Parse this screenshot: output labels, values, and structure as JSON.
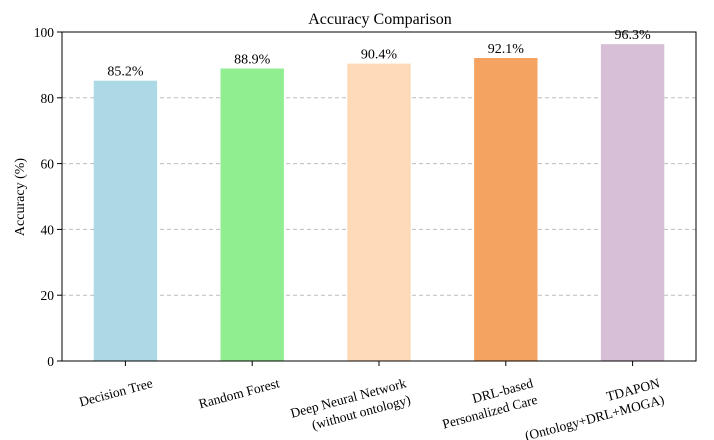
{
  "chart_data": {
    "type": "bar",
    "title": "Accuracy Comparison",
    "xlabel": "",
    "ylabel": "Accuracy (%)",
    "ylim": [
      0,
      100
    ],
    "yticks": [
      0,
      20,
      40,
      60,
      80,
      100
    ],
    "grid": "y-dashed",
    "categories": [
      "Decision Tree",
      "Random Forest",
      "Deep Neural Network\n(without ontology)",
      "DRL-based\nPersonalized Care",
      "TDAPON\n(Ontology+DRL+MOGA)"
    ],
    "values": [
      85.2,
      88.9,
      90.4,
      92.1,
      96.3
    ],
    "data_labels": [
      "85.2%",
      "88.9%",
      "90.4%",
      "92.1%",
      "96.3%"
    ],
    "colors": [
      "#add8e6",
      "#90ee90",
      "#ffdab9",
      "#f4a460",
      "#d8bfd8"
    ]
  }
}
